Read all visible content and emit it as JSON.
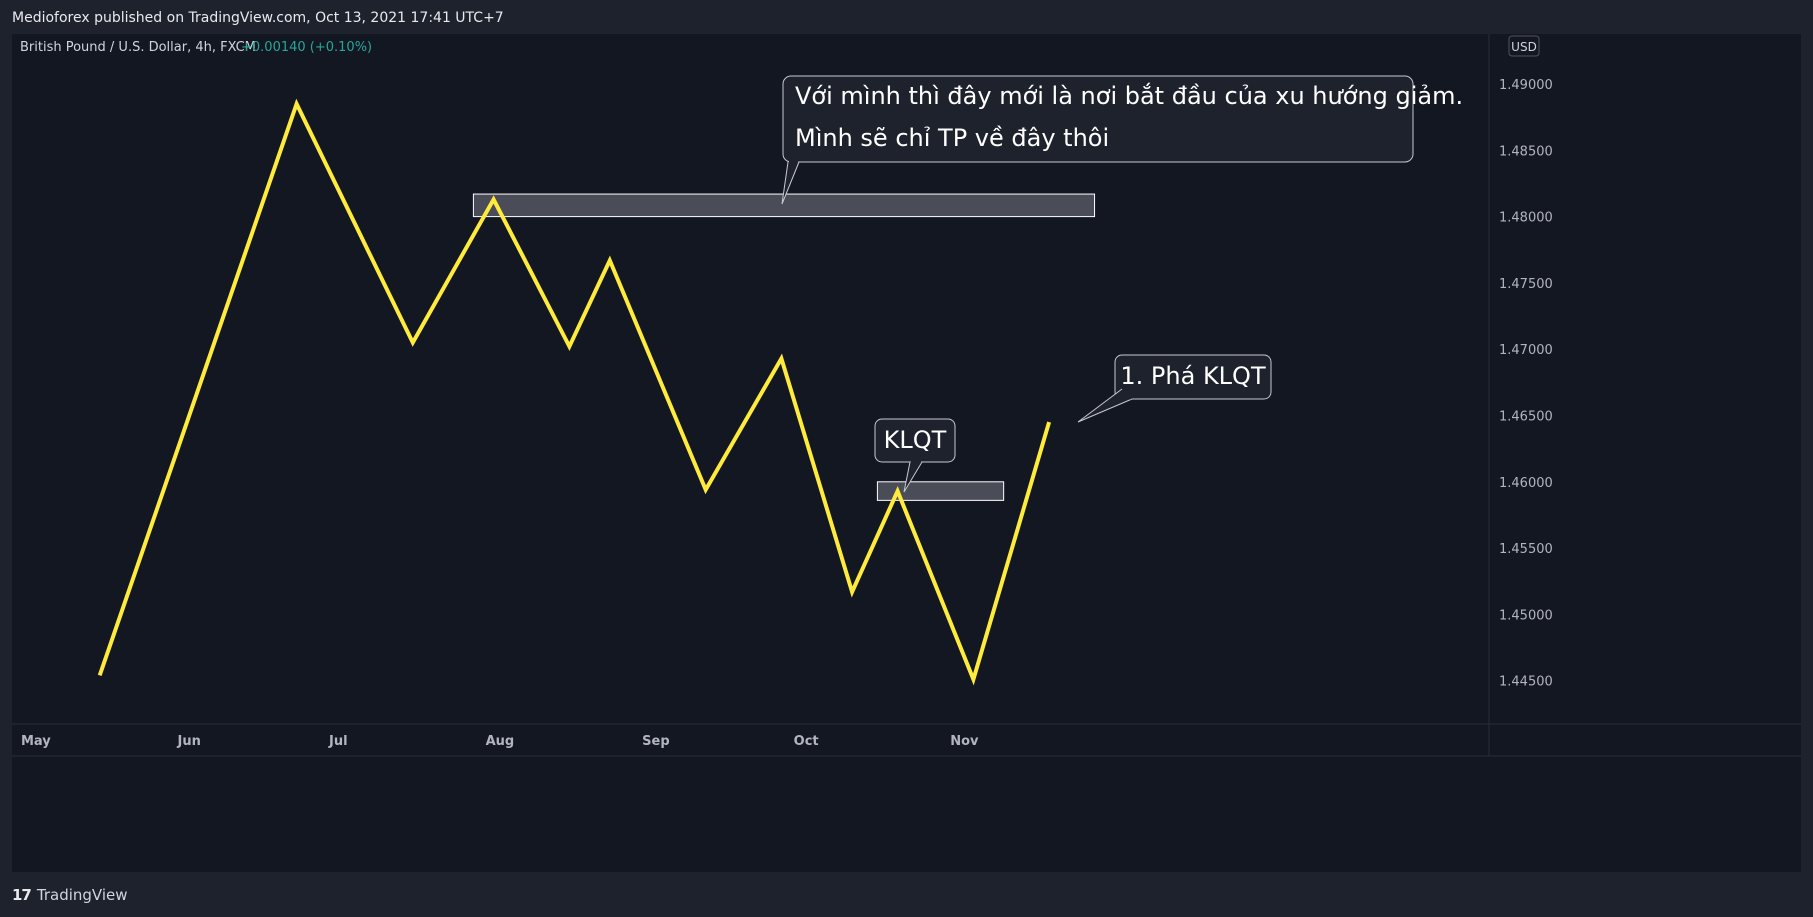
{
  "header": {
    "published": "Medioforex published on TradingView.com, Oct 13, 2021 17:41 UTC+7"
  },
  "symbol": {
    "title": "British Pound / U.S. Dollar, 4h, FXCM",
    "change": "+0.00140 (+0.10%)",
    "change_color": "#26a69a"
  },
  "currency_badge": "USD",
  "footer": {
    "brand": "TradingView",
    "logo_icon": "tradingview-logo-icon"
  },
  "colors": {
    "background": "#131722",
    "line": "#ffeb3b",
    "zone_fill": "#5d606b",
    "callout_fill": "#1e222d"
  },
  "chart_data": {
    "type": "line",
    "y_axis_labels": [
      "1.49000",
      "1.48500",
      "1.48000",
      "1.47500",
      "1.47000",
      "1.46500",
      "1.46000",
      "1.45500",
      "1.45000",
      "1.44500"
    ],
    "x_axis_labels": [
      "May",
      "Jun",
      "Jul",
      "Aug",
      "Sep",
      "Oct",
      "Nov"
    ],
    "ylim": [
      1.4405,
      1.4925
    ],
    "series": [
      {
        "points": [
          {
            "x": "2021-05-15",
            "y": 1.4454
          },
          {
            "x": "2021-06-23",
            "y": 1.4885
          },
          {
            "x": "2021-07-16",
            "y": 1.4705
          },
          {
            "x": "2021-08-01",
            "y": 1.4813
          },
          {
            "x": "2021-08-16",
            "y": 1.4702
          },
          {
            "x": "2021-08-24",
            "y": 1.4767
          },
          {
            "x": "2021-09-12",
            "y": 1.4594
          },
          {
            "x": "2021-09-27",
            "y": 1.4693
          },
          {
            "x": "2021-10-11",
            "y": 1.4517
          },
          {
            "x": "2021-10-20",
            "y": 1.4593
          },
          {
            "x": "2021-11-04",
            "y": 1.4451
          },
          {
            "x": "2021-11-19",
            "y": 1.4645
          }
        ]
      }
    ],
    "zones": [
      {
        "x_start": "2021-07-28",
        "x_end": "2021-11-28",
        "y_low": 1.48,
        "y_high": 1.4817
      },
      {
        "x_start": "2021-10-16",
        "x_end": "2021-11-10",
        "y_low": 1.4586,
        "y_high": 1.46
      }
    ],
    "annotations": [
      {
        "id": "ann-downtrend",
        "lines": [
          "Với mình thì đây mới là nơi bắt đầu của xu hướng giảm.",
          "Mình sẽ chỉ TP về đây thôi"
        ]
      },
      {
        "id": "ann-klqt",
        "lines": [
          "KLQT"
        ]
      },
      {
        "id": "ann-break",
        "lines": [
          "1. Phá KLQT"
        ]
      }
    ],
    "grid": false
  }
}
